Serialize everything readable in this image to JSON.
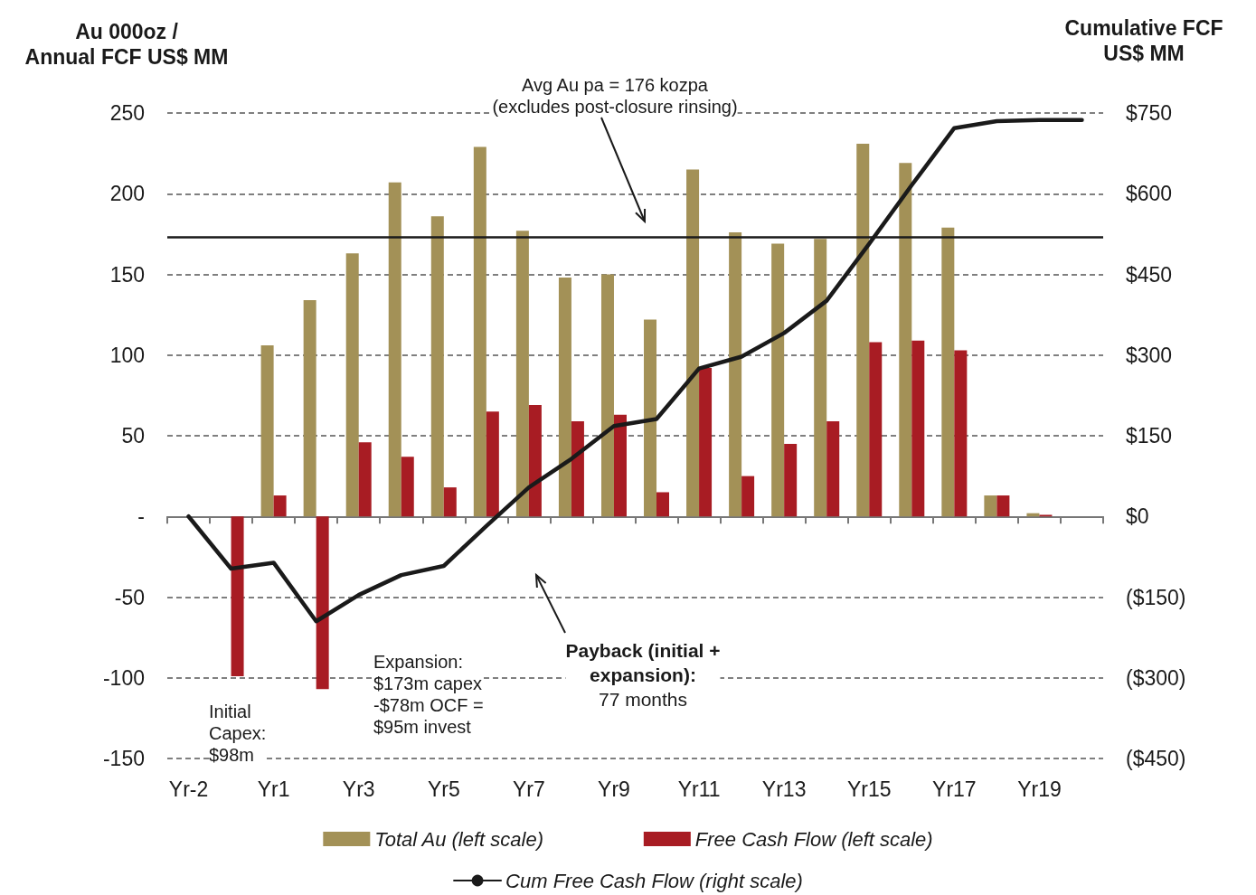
{
  "chart_data": {
    "type": "bar",
    "ylabel": "Au 000oz /\nAnnual FCF US$ MM",
    "y2label": "Cumulative FCF\nUS$ MM",
    "categories": [
      "Yr-2",
      null,
      "Yr1",
      null,
      "Yr3",
      null,
      "Yr5",
      null,
      "Yr7",
      null,
      "Yr9",
      null,
      "Yr11",
      null,
      "Yr13",
      null,
      "Yr15",
      null,
      "Yr17",
      null,
      "Yr19",
      null
    ],
    "series": [
      {
        "name": "Total Au (left scale)",
        "color": "#a39157",
        "values": [
          null,
          null,
          106,
          134,
          163,
          207,
          186,
          229,
          177,
          148,
          150,
          122,
          215,
          176,
          169,
          172,
          231,
          219,
          179,
          13,
          2,
          null
        ]
      },
      {
        "name": "Free Cash Flow (left scale)",
        "color": "#a81c23",
        "values": [
          null,
          -99,
          13,
          -107,
          46,
          37,
          18,
          65,
          69,
          59,
          63,
          15,
          92,
          25,
          45,
          59,
          108,
          109,
          103,
          13,
          1,
          null
        ]
      },
      {
        "name": "Cum Free Cash Flow (right scale)",
        "type": "line",
        "axis": "y2",
        "color": "#1a1a1a",
        "values": [
          0,
          -97,
          -86,
          -195,
          -146,
          -109,
          -92,
          -18,
          54,
          107,
          168,
          181,
          275,
          297,
          341,
          401,
          507,
          616,
          722,
          735,
          737,
          737
        ]
      }
    ],
    "ylim": [
      -150,
      250
    ],
    "yticks": [
      -150,
      -100,
      -50,
      {
        "value": 0,
        "label": "-"
      },
      50,
      100,
      150,
      200,
      250
    ],
    "y2lim": [
      -450,
      750
    ],
    "y2ticks": [
      {
        "value": -450,
        "label": "($450)"
      },
      {
        "value": -300,
        "label": "($300)"
      },
      {
        "value": -150,
        "label": "($150)"
      },
      {
        "value": 0,
        "label": "$0"
      },
      {
        "value": 150,
        "label": "$150"
      },
      {
        "value": 300,
        "label": "$300"
      },
      {
        "value": 450,
        "label": "$450"
      },
      {
        "value": 600,
        "label": "$600"
      },
      {
        "value": 750,
        "label": "$750"
      }
    ],
    "ref_lines": [
      {
        "axis": "y",
        "value": 173,
        "color": "#1a1a1a"
      }
    ],
    "annotations": [
      "Avg Au pa = 176 kozpa\n(excludes post-closure rinsing)",
      "Payback (initial +\nexpansion):\n77 months",
      "Expansion:\n$173m capex\n-$78m OCF =\n$95m invest",
      "Initial\nCapex:\n$98m"
    ],
    "grid": "y",
    "legend": "bottom",
    "marker": "none"
  }
}
